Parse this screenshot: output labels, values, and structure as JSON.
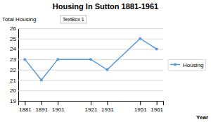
{
  "chart_data": {
    "type": "line",
    "title": "Housing In Sutton 1881-1961",
    "ylabel": "Total Housing",
    "xlabel": "Year",
    "annotation": "TextBox 1",
    "x": [
      1881,
      1891,
      1901,
      1921,
      1931,
      1951,
      1961
    ],
    "series": [
      {
        "name": "Housing",
        "color": "#5B9BD5",
        "values": [
          23,
          21,
          23,
          23,
          22,
          25,
          24
        ],
        "marker": "circle"
      }
    ],
    "xlim": [
      1877,
      1965
    ],
    "xticks": [
      1881,
      1891,
      1901,
      1921,
      1931,
      1951,
      1961
    ],
    "ylim": [
      19,
      26
    ],
    "yticks": [
      19,
      20,
      21,
      22,
      23,
      24,
      25,
      26
    ],
    "grid": true,
    "legend": "right"
  }
}
